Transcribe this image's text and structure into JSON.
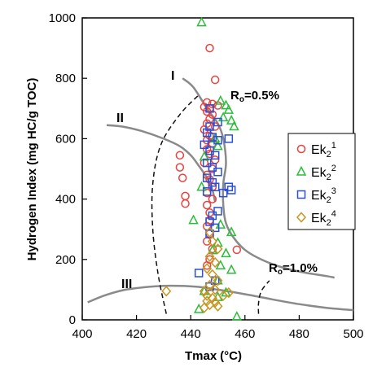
{
  "chart_data": {
    "type": "scatter",
    "xlabel": "Tmax",
    "xlabel_unit": "(°C)",
    "ylabel": "Hydrogen Index (mg HC/g TOC)",
    "xlim": [
      400,
      500
    ],
    "ylim": [
      0,
      1000
    ],
    "xticks": [
      "400",
      "420",
      "440",
      "460",
      "480",
      "500"
    ],
    "yticks": [
      "0",
      "200",
      "400",
      "600",
      "800",
      "1000"
    ],
    "grid": false,
    "legend_position": "right",
    "series": [
      {
        "name": "Ek21",
        "label_base": "Ek",
        "label_sub": "2",
        "label_sup": "1",
        "marker": "circle",
        "color": "#e8433f",
        "points": [
          [
            447,
            900
          ],
          [
            449,
            795
          ],
          [
            446,
            720
          ],
          [
            448,
            715
          ],
          [
            450,
            710
          ],
          [
            445,
            705
          ],
          [
            447,
            700
          ],
          [
            446,
            690
          ],
          [
            448,
            680
          ],
          [
            447,
            665
          ],
          [
            446,
            650
          ],
          [
            449,
            640
          ],
          [
            445,
            630
          ],
          [
            447,
            610
          ],
          [
            446,
            595
          ],
          [
            448,
            585
          ],
          [
            446,
            565
          ],
          [
            447,
            550
          ],
          [
            449,
            530
          ],
          [
            445,
            520
          ],
          [
            448,
            500
          ],
          [
            446,
            480
          ],
          [
            447,
            465
          ],
          [
            448,
            440
          ],
          [
            446,
            420
          ],
          [
            448,
            400
          ],
          [
            446,
            380
          ],
          [
            447,
            355
          ],
          [
            447,
            330
          ],
          [
            446,
            310
          ],
          [
            447,
            285
          ],
          [
            446,
            260
          ],
          [
            448,
            235
          ],
          [
            447,
            200
          ],
          [
            446,
            180
          ],
          [
            457,
            232
          ],
          [
            436,
            545
          ],
          [
            436,
            505
          ],
          [
            437,
            470
          ],
          [
            438,
            410
          ],
          [
            438,
            385
          ]
        ]
      },
      {
        "name": "Ek22",
        "label_base": "Ek",
        "label_sub": "2",
        "label_sup": "2",
        "marker": "triangle",
        "color": "#2bbd3b",
        "points": [
          [
            444,
            985
          ],
          [
            451,
            725
          ],
          [
            453,
            710
          ],
          [
            454,
            695
          ],
          [
            452,
            670
          ],
          [
            455,
            660
          ],
          [
            456,
            640
          ],
          [
            449,
            600
          ],
          [
            450,
            575
          ],
          [
            445,
            540
          ],
          [
            444,
            440
          ],
          [
            441,
            330
          ],
          [
            451,
            315
          ],
          [
            455,
            290
          ],
          [
            450,
            255
          ],
          [
            448,
            230
          ],
          [
            453,
            220
          ],
          [
            451,
            180
          ],
          [
            455,
            165
          ],
          [
            450,
            130
          ],
          [
            445,
            95
          ],
          [
            453,
            90
          ],
          [
            450,
            75
          ],
          [
            443,
            35
          ],
          [
            457,
            10
          ]
        ]
      },
      {
        "name": "Ek23",
        "label_base": "Ek",
        "label_sub": "2",
        "label_sup": "3",
        "marker": "square",
        "color": "#2b4fd8",
        "points": [
          [
            447,
            700
          ],
          [
            450,
            655
          ],
          [
            447,
            640
          ],
          [
            446,
            620
          ],
          [
            448,
            605
          ],
          [
            450,
            595
          ],
          [
            445,
            580
          ],
          [
            447,
            560
          ],
          [
            449,
            545
          ],
          [
            446,
            520
          ],
          [
            448,
            505
          ],
          [
            450,
            490
          ],
          [
            446,
            470
          ],
          [
            448,
            455
          ],
          [
            449,
            440
          ],
          [
            446,
            425
          ],
          [
            452,
            420
          ],
          [
            454,
            440
          ],
          [
            455,
            430
          ],
          [
            454,
            600
          ],
          [
            450,
            360
          ],
          [
            448,
            345
          ],
          [
            447,
            325
          ],
          [
            449,
            305
          ],
          [
            447,
            285
          ],
          [
            443,
            155
          ],
          [
            449,
            130
          ],
          [
            447,
            110
          ]
        ]
      },
      {
        "name": "Ek24",
        "label_base": "Ek",
        "label_sub": "2",
        "label_sup": "4",
        "marker": "diamond",
        "color": "#c99520",
        "points": [
          [
            447,
            290
          ],
          [
            448,
            260
          ],
          [
            450,
            235
          ],
          [
            447,
            210
          ],
          [
            449,
            190
          ],
          [
            446,
            170
          ],
          [
            448,
            150
          ],
          [
            450,
            130
          ],
          [
            447,
            115
          ],
          [
            449,
            100
          ],
          [
            445,
            95
          ],
          [
            446,
            80
          ],
          [
            448,
            72
          ],
          [
            446,
            62
          ],
          [
            449,
            58
          ],
          [
            447,
            50
          ],
          [
            450,
            45
          ],
          [
            445,
            40
          ],
          [
            452,
            80
          ],
          [
            454,
            90
          ],
          [
            431,
            95
          ]
        ]
      }
    ],
    "annotations": {
      "zone_I": "I",
      "zone_II": "II",
      "zone_III": "III",
      "ro_05": "Ro=0.5%",
      "ro_10": "Ro=1.0%",
      "ro_05_base": "R",
      "ro_05_sub": "o",
      "ro_05_rest": "=0.5%",
      "ro_10_base": "R",
      "ro_10_sub": "o",
      "ro_10_rest": "=1.0%"
    },
    "curves": {
      "type_I": [
        [
          437,
          800
        ],
        [
          441,
          770
        ],
        [
          446,
          700
        ],
        [
          450,
          650
        ],
        [
          452,
          600
        ],
        [
          453,
          520
        ],
        [
          452,
          450
        ],
        [
          452,
          380
        ],
        [
          453,
          320
        ],
        [
          456,
          270
        ],
        [
          461,
          225
        ],
        [
          470,
          185
        ],
        [
          480,
          160
        ],
        [
          490,
          145
        ],
        [
          493,
          140
        ]
      ],
      "type_II": [
        [
          409,
          645
        ],
        [
          415,
          640
        ],
        [
          422,
          625
        ],
        [
          430,
          600
        ],
        [
          436,
          575
        ],
        [
          440,
          545
        ],
        [
          443,
          510
        ],
        [
          446,
          470
        ],
        [
          448,
          430
        ],
        [
          449,
          390
        ]
      ],
      "type_III": [
        [
          402,
          58
        ],
        [
          408,
          80
        ],
        [
          415,
          98
        ],
        [
          423,
          108
        ],
        [
          432,
          113
        ],
        [
          442,
          110
        ],
        [
          450,
          100
        ],
        [
          460,
          85
        ],
        [
          470,
          68
        ],
        [
          480,
          52
        ],
        [
          490,
          40
        ],
        [
          500,
          32
        ]
      ],
      "ro_05": [
        [
          431,
          20
        ],
        [
          428,
          150
        ],
        [
          426,
          300
        ],
        [
          426,
          450
        ],
        [
          429,
          580
        ],
        [
          436,
          680
        ],
        [
          443,
          745
        ]
      ],
      "ro_10": [
        [
          465,
          20
        ],
        [
          465,
          55
        ],
        [
          466,
          95
        ],
        [
          469,
          130
        ]
      ]
    },
    "colors": {
      "curve": "#8a8a8a",
      "axis": "#000000",
      "boundary": "#000000"
    }
  }
}
